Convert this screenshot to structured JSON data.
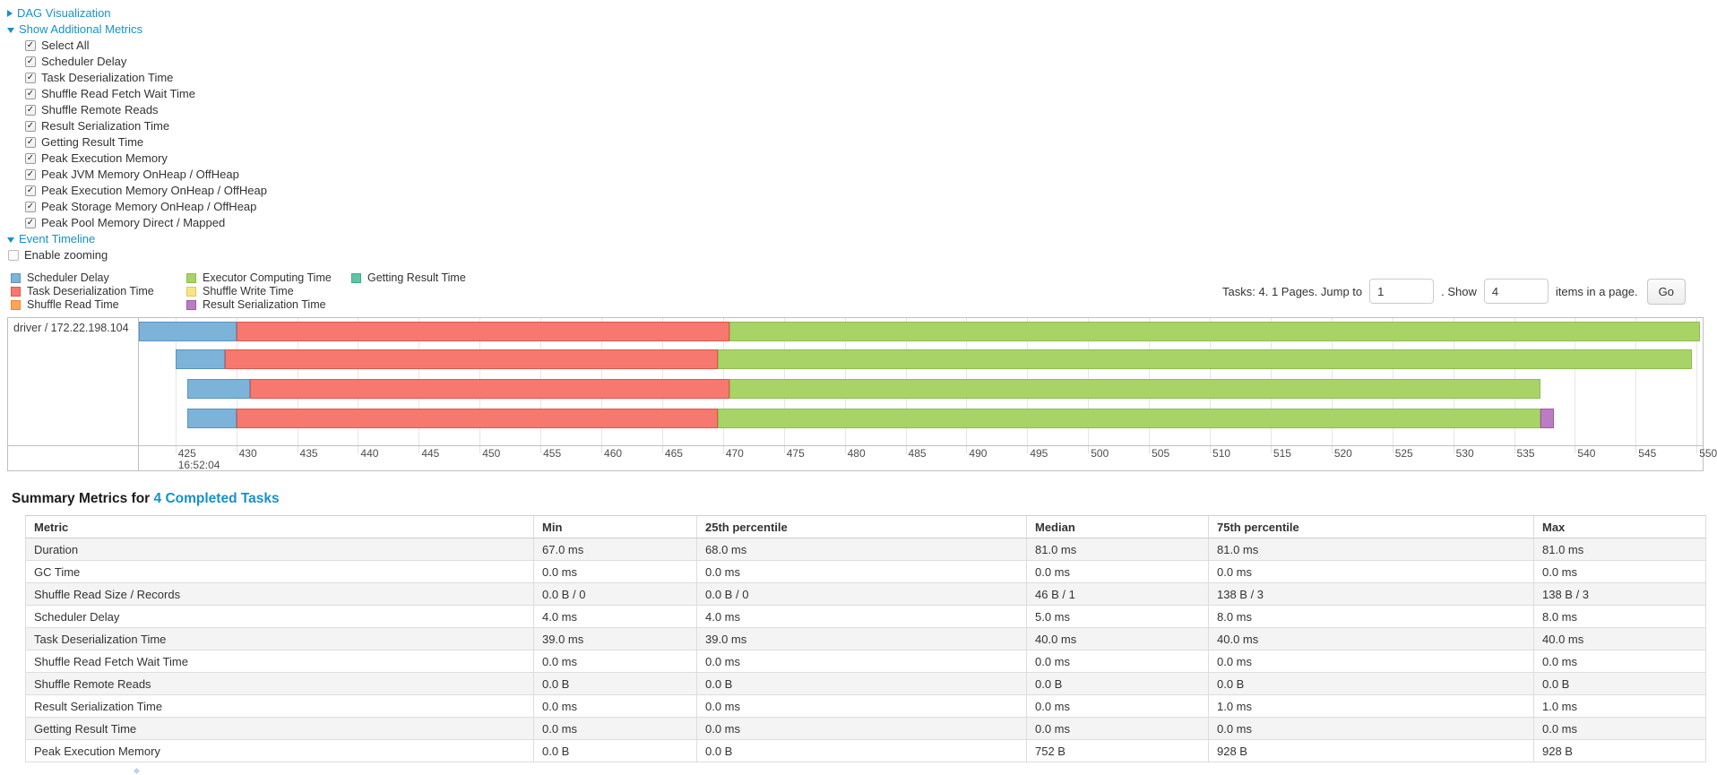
{
  "colors": {
    "accent": "#1791c9",
    "scheduler_delay": {
      "fill": "#7db3d8",
      "border": "#5a94c0"
    },
    "task_deserialization": {
      "fill": "#f7786f",
      "border": "#e1564c"
    },
    "shuffle_read": {
      "fill": "#f9a65b",
      "border": "#df8a3e"
    },
    "executor_computing": {
      "fill": "#a8d467",
      "border": "#8fbd4e"
    },
    "shuffle_write": {
      "fill": "#f6e683",
      "border": "#dcc95c"
    },
    "result_serialization": {
      "fill": "#bc7cc4",
      "border": "#a058aa"
    },
    "getting_result": {
      "fill": "#5fc4a7",
      "border": "#41a98b"
    }
  },
  "controls": {
    "dag_label": "DAG Visualization",
    "metrics_toggle_label": "Show Additional Metrics",
    "metric_checkboxes": [
      "Select All",
      "Scheduler Delay",
      "Task Deserialization Time",
      "Shuffle Read Fetch Wait Time",
      "Shuffle Remote Reads",
      "Result Serialization Time",
      "Getting Result Time",
      "Peak Execution Memory",
      "Peak JVM Memory OnHeap / OffHeap",
      "Peak Execution Memory OnHeap / OffHeap",
      "Peak Storage Memory OnHeap / OffHeap",
      "Peak Pool Memory Direct / Mapped"
    ],
    "event_timeline_label": "Event Timeline",
    "enable_zooming_label": "Enable zooming",
    "enable_zooming_checked": false
  },
  "legend": {
    "columns": [
      [
        {
          "label": "Scheduler Delay",
          "metric": "scheduler_delay"
        },
        {
          "label": "Task Deserialization Time",
          "metric": "task_deserialization"
        },
        {
          "label": "Shuffle Read Time",
          "metric": "shuffle_read"
        }
      ],
      [
        {
          "label": "Executor Computing Time",
          "metric": "executor_computing"
        },
        {
          "label": "Shuffle Write Time",
          "metric": "shuffle_write"
        },
        {
          "label": "Result Serialization Time",
          "metric": "result_serialization"
        }
      ],
      [
        {
          "label": "Getting Result Time",
          "metric": "getting_result"
        }
      ]
    ]
  },
  "pagination": {
    "prefix": "Tasks: 4. 1 Pages. Jump to",
    "jump_value": "1",
    "middle": ". Show",
    "show_value": "4",
    "suffix": "items in a page.",
    "go_label": "Go"
  },
  "chart_data": {
    "type": "timeline-gantt",
    "group_label": "driver / 172.22.198.104",
    "axis": {
      "x_min": 422.0,
      "x_max": 550.5,
      "tick_start": 425,
      "tick_end": 550,
      "tick_step": 5,
      "time_label": "16:52:04"
    },
    "tasks": [
      {
        "segments": [
          {
            "metric": "scheduler_delay",
            "start": 422.0,
            "end": 430.0
          },
          {
            "metric": "task_deserialization",
            "start": 430.0,
            "end": 470.5
          },
          {
            "metric": "executor_computing",
            "start": 470.5,
            "end": 550.3
          }
        ]
      },
      {
        "segments": [
          {
            "metric": "scheduler_delay",
            "start": 425.0,
            "end": 429.1
          },
          {
            "metric": "task_deserialization",
            "start": 429.1,
            "end": 469.6
          },
          {
            "metric": "executor_computing",
            "start": 469.6,
            "end": 549.6
          }
        ]
      },
      {
        "segments": [
          {
            "metric": "scheduler_delay",
            "start": 426.0,
            "end": 431.1
          },
          {
            "metric": "task_deserialization",
            "start": 431.1,
            "end": 470.5
          },
          {
            "metric": "executor_computing",
            "start": 470.5,
            "end": 537.2
          }
        ]
      },
      {
        "segments": [
          {
            "metric": "scheduler_delay",
            "start": 426.0,
            "end": 430.0
          },
          {
            "metric": "task_deserialization",
            "start": 430.0,
            "end": 469.6
          },
          {
            "metric": "executor_computing",
            "start": 469.6,
            "end": 537.2
          },
          {
            "metric": "result_serialization",
            "start": 537.2,
            "end": 538.3
          }
        ]
      }
    ]
  },
  "summary": {
    "title_prefix": "Summary Metrics for",
    "title_link": "4 Completed Tasks",
    "table": {
      "headers": [
        "Metric",
        "Min",
        "25th percentile",
        "Median",
        "75th percentile",
        "Max"
      ],
      "rows": [
        {
          "metric": "Duration",
          "values": [
            "67.0 ms",
            "68.0 ms",
            "81.0 ms",
            "81.0 ms",
            "81.0 ms"
          ]
        },
        {
          "metric": "GC Time",
          "values": [
            "0.0 ms",
            "0.0 ms",
            "0.0 ms",
            "0.0 ms",
            "0.0 ms"
          ]
        },
        {
          "metric": "Shuffle Read Size / Records",
          "values": [
            "0.0 B / 0",
            "0.0 B / 0",
            "46 B / 1",
            "138 B / 3",
            "138 B / 3"
          ]
        },
        {
          "metric": "Scheduler Delay",
          "values": [
            "4.0 ms",
            "4.0 ms",
            "5.0 ms",
            "8.0 ms",
            "8.0 ms"
          ]
        },
        {
          "metric": "Task Deserialization Time",
          "values": [
            "39.0 ms",
            "39.0 ms",
            "40.0 ms",
            "40.0 ms",
            "40.0 ms"
          ]
        },
        {
          "metric": "Shuffle Read Fetch Wait Time",
          "values": [
            "0.0 ms",
            "0.0 ms",
            "0.0 ms",
            "0.0 ms",
            "0.0 ms"
          ]
        },
        {
          "metric": "Shuffle Remote Reads",
          "values": [
            "0.0 B",
            "0.0 B",
            "0.0 B",
            "0.0 B",
            "0.0 B"
          ]
        },
        {
          "metric": "Result Serialization Time",
          "values": [
            "0.0 ms",
            "0.0 ms",
            "0.0 ms",
            "1.0 ms",
            "1.0 ms"
          ]
        },
        {
          "metric": "Getting Result Time",
          "values": [
            "0.0 ms",
            "0.0 ms",
            "0.0 ms",
            "0.0 ms",
            "0.0 ms"
          ]
        },
        {
          "metric": "Peak Execution Memory",
          "values": [
            "0.0 B",
            "0.0 B",
            "752 B",
            "928 B",
            "928 B"
          ]
        }
      ]
    }
  }
}
